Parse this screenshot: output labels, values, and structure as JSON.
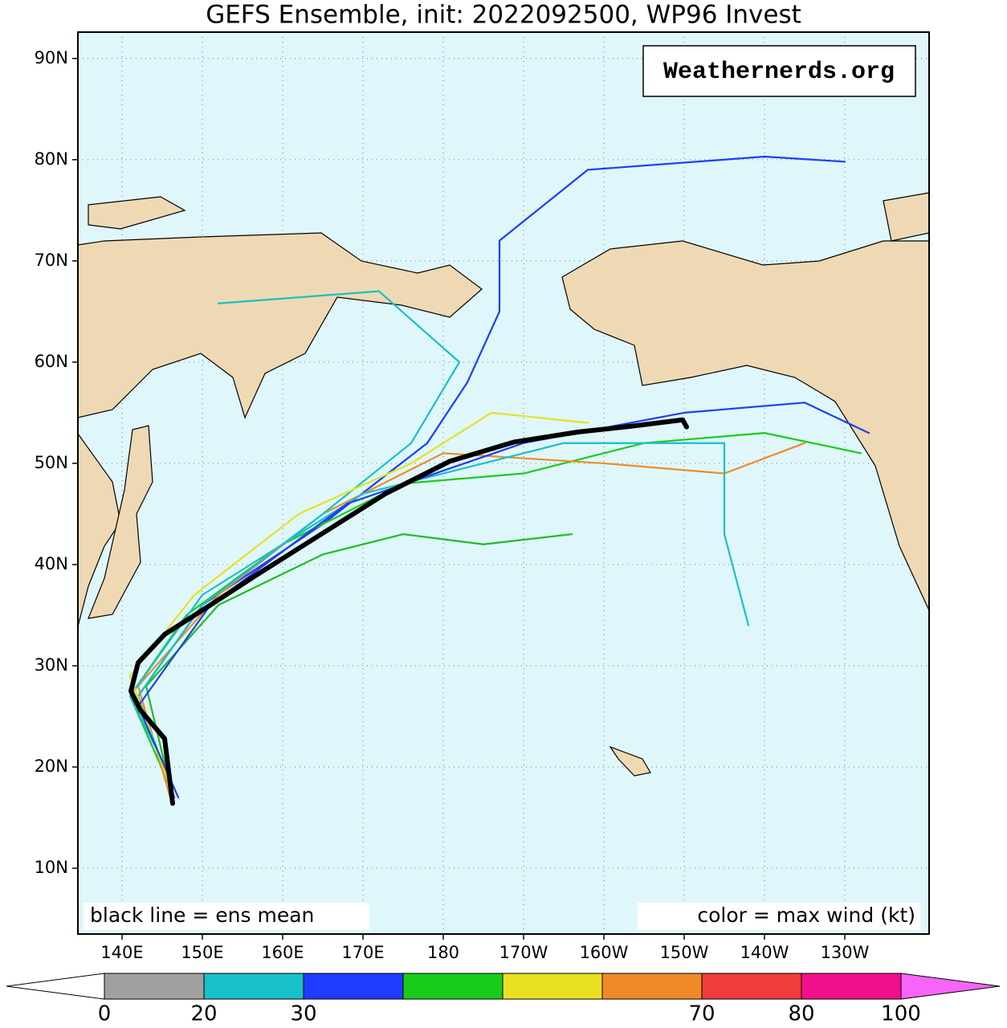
{
  "chart_data": {
    "type": "track-map",
    "title": "GEFS Ensemble, init: 2022092500, WP96 Invest",
    "xlim": [
      134.5,
      240.5
    ],
    "ylim": [
      3.5,
      92.6
    ],
    "xticks": [
      {
        "value": 140,
        "label": "140E"
      },
      {
        "value": 150,
        "label": "150E"
      },
      {
        "value": 160,
        "label": "160E"
      },
      {
        "value": 170,
        "label": "170E"
      },
      180,
      {
        "value": 190,
        "label": "170W"
      },
      {
        "value": 200,
        "label": "160W"
      },
      {
        "value": 210,
        "label": "150W"
      },
      {
        "value": 220,
        "label": "140W"
      },
      {
        "value": 230,
        "label": "130W"
      }
    ],
    "yticks": [
      {
        "value": 10,
        "label": "10N"
      },
      {
        "value": 20,
        "label": "20N"
      },
      {
        "value": 30,
        "label": "30N"
      },
      {
        "value": 40,
        "label": "40N"
      },
      {
        "value": 50,
        "label": "50N"
      },
      {
        "value": 60,
        "label": "60N"
      },
      {
        "value": 70,
        "label": "70N"
      },
      {
        "value": 80,
        "label": "80N"
      },
      {
        "value": 90,
        "label": "90N"
      }
    ],
    "grid": true,
    "watermark": "Weathernerds.org",
    "annotations": [
      "black line = ens mean",
      "color = max wind (kt)"
    ],
    "series": [
      {
        "color": "#1e3cff",
        "lon": [
          146.5,
          142,
          150,
          165,
          178,
          183,
          187,
          187,
          198,
          220,
          230
        ],
        "lat": [
          17,
          27,
          36,
          44,
          52,
          58,
          65,
          72,
          79,
          80.3,
          79.8
        ]
      },
      {
        "color": "#19cc19",
        "lon": [
          146,
          141,
          148,
          160,
          175,
          190,
          205,
          220,
          232
        ],
        "lat": [
          18,
          27,
          35,
          42,
          48,
          49,
          52,
          53,
          51
        ]
      },
      {
        "color": "#f08a28",
        "lon": [
          146,
          142,
          152,
          165,
          180,
          200,
          215,
          225
        ],
        "lat": [
          17,
          28,
          37,
          45,
          51,
          50,
          49,
          52
        ]
      },
      {
        "color": "#22bb22",
        "lon": [
          146,
          143,
          152,
          165,
          175,
          185,
          196
        ],
        "lat": [
          18,
          28,
          36,
          41,
          43,
          42,
          43
        ]
      },
      {
        "color": "#18c0c8",
        "lon": [
          146,
          141,
          150,
          170,
          195,
          215,
          215,
          218
        ],
        "lat": [
          19,
          27,
          37,
          47,
          52,
          52,
          43,
          34
        ]
      },
      {
        "color": "#18c0c8",
        "lon": [
          146,
          142,
          150,
          165,
          176,
          182,
          172,
          152
        ],
        "lat": [
          18,
          27,
          36,
          45,
          52,
          60,
          67,
          65.8
        ]
      },
      {
        "color": "#e8e020",
        "lon": [
          146,
          141,
          149,
          162,
          176,
          186,
          198
        ],
        "lat": [
          18,
          29,
          37,
          45,
          50,
          55,
          54
        ]
      },
      {
        "color": "#2040ee",
        "lon": [
          147,
          142,
          151,
          168,
          190,
          210,
          225,
          233
        ],
        "lat": [
          17,
          26,
          36,
          46,
          52,
          55,
          56,
          53
        ]
      }
    ],
    "mean_track": {
      "color": "#000000",
      "lon": [
        146.3,
        145.3,
        142.3,
        141.1,
        142.0,
        145.3,
        150.8,
        156.8,
        164.8,
        172.8,
        180.8,
        188.8,
        196.8,
        203.8,
        209.8,
        210.3
      ],
      "lat": [
        16.4,
        22.8,
        25.6,
        27.5,
        30.3,
        33.1,
        35.9,
        39.0,
        43.0,
        47.0,
        50.2,
        52.1,
        53.1,
        53.7,
        54.3,
        53.6
      ]
    },
    "colorbar": {
      "levels": [
        0,
        20,
        30,
        40,
        50,
        60,
        70,
        80,
        100
      ],
      "colors": [
        "#a0a0a0",
        "#18c0c8",
        "#1e3cff",
        "#19cc19",
        "#e8e020",
        "#f08a28",
        "#f03c3c",
        "#f0108c"
      ],
      "under_color": "#ffffff",
      "over_color": "#f864f8",
      "ticks": [
        0,
        20,
        30,
        70,
        80,
        100
      ]
    }
  }
}
